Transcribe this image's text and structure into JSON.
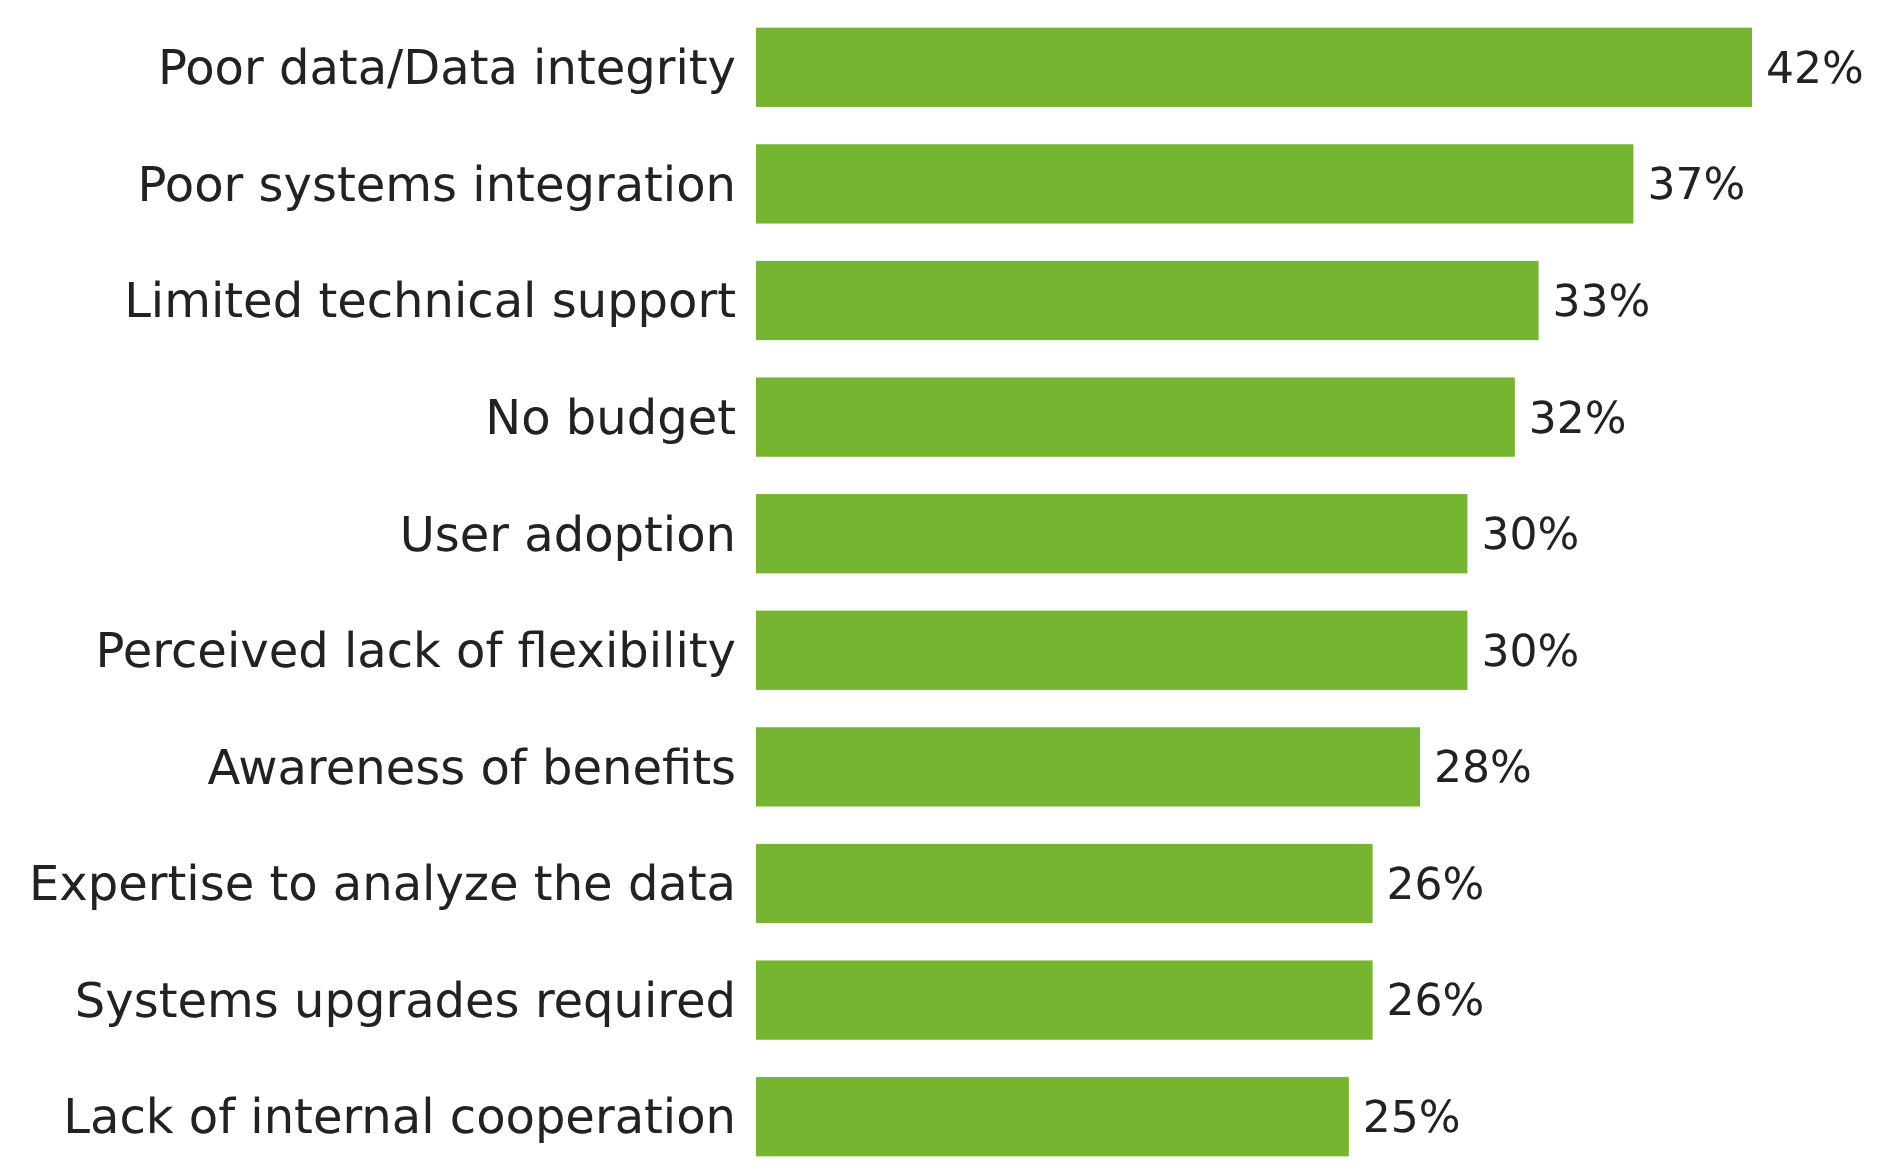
{
  "chart_data": {
    "type": "bar",
    "orientation": "horizontal",
    "categories": [
      "Poor data/Data integrity",
      "Poor systems integration",
      "Limited technical support",
      "No budget",
      "User adoption",
      "Perceived lack of flexibility",
      "Awareness of benefits",
      "Expertise to analyze the data",
      "Systems upgrades required",
      "Lack of internal cooperation"
    ],
    "values": [
      42,
      37,
      33,
      32,
      30,
      30,
      28,
      26,
      26,
      25
    ],
    "value_labels": [
      "42%",
      "37%",
      "33%",
      "32%",
      "30%",
      "30%",
      "28%",
      "26%",
      "26%",
      "25%"
    ],
    "color": "#76b531"
  }
}
